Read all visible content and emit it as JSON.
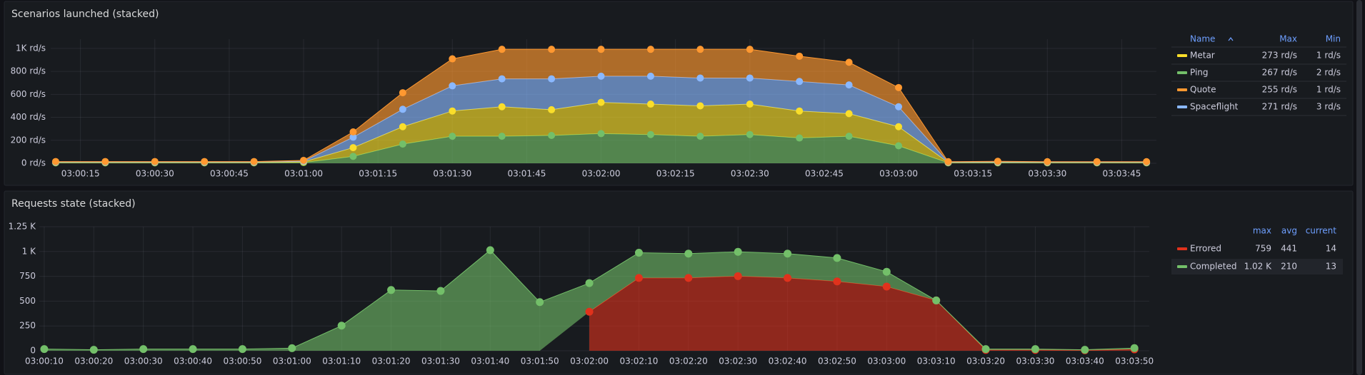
{
  "chart_data": [
    {
      "type": "line",
      "stacked": true,
      "title": "Scenarios launched (stacked)",
      "x": [
        "03:00:10",
        "03:00:20",
        "03:00:30",
        "03:00:40",
        "03:00:50",
        "03:01:00",
        "03:01:10",
        "03:01:20",
        "03:01:30",
        "03:01:40",
        "03:01:50",
        "03:02:00",
        "03:02:10",
        "03:02:20",
        "03:02:30",
        "03:02:40",
        "03:02:50",
        "03:03:00",
        "03:03:10",
        "03:03:20",
        "03:03:30",
        "03:03:40",
        "03:03:50"
      ],
      "xlim": [
        "03:00:09",
        "03:03:52"
      ],
      "xticks": [
        "03:00:15",
        "03:00:30",
        "03:00:45",
        "03:01:00",
        "03:01:15",
        "03:01:30",
        "03:01:45",
        "03:02:00",
        "03:02:15",
        "03:02:30",
        "03:02:45",
        "03:03:00",
        "03:03:15",
        "03:03:30",
        "03:03:45"
      ],
      "ylim": [
        0,
        1080
      ],
      "yticks": [
        {
          "value": 0,
          "label": "0 rd/s"
        },
        {
          "value": 200,
          "label": "200 rd/s"
        },
        {
          "value": 400,
          "label": "400 rd/s"
        },
        {
          "value": 600,
          "label": "600 rd/s"
        },
        {
          "value": 800,
          "label": "800 rd/s"
        },
        {
          "value": 1000,
          "label": "1K rd/s"
        }
      ],
      "grid": true,
      "fill_opacity": 0.65,
      "legend_sort": "name-asc",
      "legend": {
        "name_header": "Name",
        "headers": [
          "Max",
          "Min"
        ]
      },
      "series": [
        {
          "name": "Ping",
          "color": "#73bf69",
          "stats": [
            "267 rd/s",
            "2 rd/s"
          ],
          "values": [
            4,
            4,
            4,
            4,
            4,
            6,
            60,
            167,
            235,
            235,
            242,
            258,
            250,
            235,
            250,
            220,
            235,
            152,
            4,
            4,
            4,
            4,
            4
          ]
        },
        {
          "name": "Metar",
          "color": "#fade2a",
          "stats": [
            "273 rd/s",
            "1 rd/s"
          ],
          "values": [
            4,
            4,
            4,
            4,
            4,
            6,
            76,
            151,
            220,
            257,
            224,
            272,
            265,
            265,
            265,
            235,
            197,
            166,
            3,
            4,
            3,
            3,
            3
          ]
        },
        {
          "name": "Spaceflight",
          "color": "#8ab8ff",
          "stats": [
            "271 rd/s",
            "3 rd/s"
          ],
          "values": [
            3,
            3,
            3,
            3,
            3,
            6,
            91,
            152,
            219,
            243,
            269,
            228,
            243,
            242,
            227,
            257,
            250,
            174,
            3,
            4,
            3,
            3,
            3
          ]
        },
        {
          "name": "Quote",
          "color": "#ff9830",
          "stats": [
            "255 rd/s",
            "1 rd/s"
          ],
          "values": [
            4,
            4,
            4,
            4,
            4,
            7,
            46,
            144,
            235,
            257,
            257,
            234,
            234,
            250,
            250,
            220,
            197,
            167,
            4,
            5,
            4,
            4,
            4
          ]
        }
      ]
    },
    {
      "type": "line",
      "stacked": true,
      "title": "Requests state (stacked)",
      "x": [
        "03:00:10",
        "03:00:20",
        "03:00:30",
        "03:00:40",
        "03:00:50",
        "03:01:00",
        "03:01:10",
        "03:01:20",
        "03:01:30",
        "03:01:40",
        "03:01:50",
        "03:02:00",
        "03:02:10",
        "03:02:20",
        "03:02:30",
        "03:02:40",
        "03:02:50",
        "03:03:00",
        "03:03:10",
        "03:03:20",
        "03:03:30",
        "03:03:40",
        "03:03:50"
      ],
      "xlim": [
        "03:00:09",
        "03:03:53"
      ],
      "xticks": [
        "03:00:10",
        "03:00:20",
        "03:00:30",
        "03:00:40",
        "03:00:50",
        "03:01:00",
        "03:01:10",
        "03:01:20",
        "03:01:30",
        "03:01:40",
        "03:01:50",
        "03:02:00",
        "03:02:10",
        "03:02:20",
        "03:02:30",
        "03:02:40",
        "03:02:50",
        "03:03:00",
        "03:03:10",
        "03:03:20",
        "03:03:30",
        "03:03:40",
        "03:03:50"
      ],
      "ylim": [
        0,
        1250
      ],
      "yticks": [
        0,
        250,
        500,
        750,
        {
          "value": 1000,
          "label": "1 K"
        },
        {
          "value": 1250,
          "label": "1.25 K"
        }
      ],
      "grid": true,
      "fill_opacity": 0.6,
      "legend": {
        "headers": [
          "max",
          "avg",
          "current"
        ]
      },
      "series": [
        {
          "name": "Errored",
          "color": "#e0321c",
          "stats": [
            759,
            441,
            14
          ],
          "values": [
            null,
            null,
            null,
            null,
            null,
            null,
            null,
            null,
            null,
            null,
            null,
            393,
            734,
            734,
            752,
            734,
            699,
            647,
            507,
            8,
            8,
            5,
            14
          ]
        },
        {
          "name": "Completed",
          "color": "#73bf69",
          "stats": [
            "1.02 K",
            210,
            13
          ],
          "values": [
            17,
            10,
            17,
            17,
            17,
            26,
            253,
            612,
            603,
            1014,
            490,
            289,
            254,
            245,
            245,
            245,
            236,
            149,
            0,
            9,
            9,
            5,
            13
          ]
        }
      ]
    }
  ]
}
